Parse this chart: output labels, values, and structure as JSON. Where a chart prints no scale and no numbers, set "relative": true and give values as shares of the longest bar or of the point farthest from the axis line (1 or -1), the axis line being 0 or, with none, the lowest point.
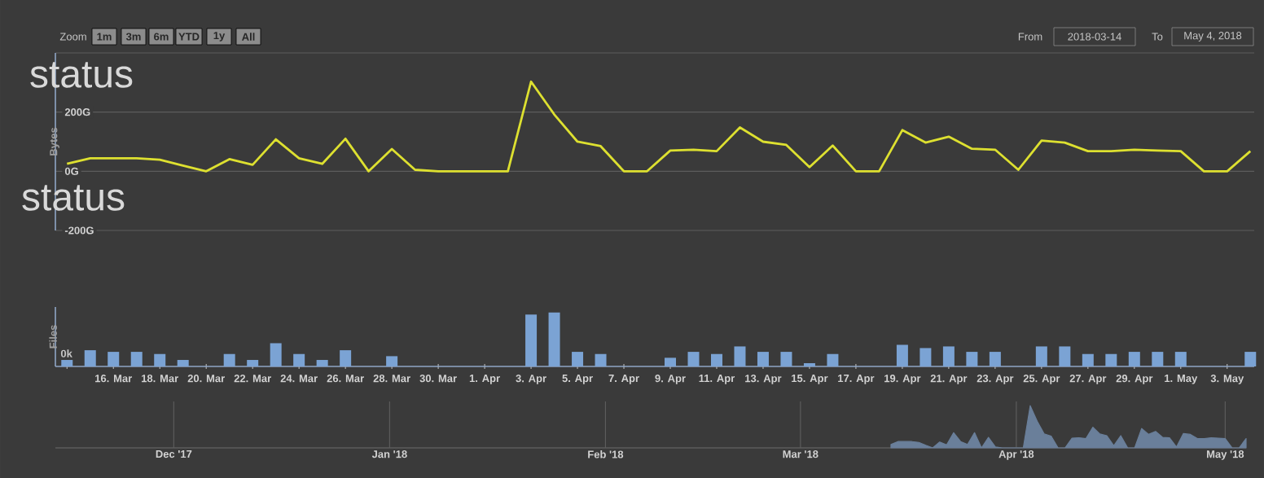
{
  "chart_data": [
    {
      "type": "line",
      "ylabel": "Bytes",
      "color": "#dde030",
      "x": [
        "2018-03-14",
        "2018-03-15",
        "2018-03-16",
        "2018-03-17",
        "2018-03-18",
        "2018-03-19",
        "2018-03-20",
        "2018-03-21",
        "2018-03-22",
        "2018-03-23",
        "2018-03-24",
        "2018-03-25",
        "2018-03-26",
        "2018-03-27",
        "2018-03-28",
        "2018-03-29",
        "2018-03-30",
        "2018-03-31",
        "2018-04-01",
        "2018-04-02",
        "2018-04-03",
        "2018-04-04",
        "2018-04-05",
        "2018-04-06",
        "2018-04-07",
        "2018-04-08",
        "2018-04-09",
        "2018-04-10",
        "2018-04-11",
        "2018-04-12",
        "2018-04-13",
        "2018-04-14",
        "2018-04-15",
        "2018-04-16",
        "2018-04-17",
        "2018-04-18",
        "2018-04-19",
        "2018-04-20",
        "2018-04-21",
        "2018-04-22",
        "2018-04-23",
        "2018-04-24",
        "2018-04-25",
        "2018-04-26",
        "2018-04-27",
        "2018-04-28",
        "2018-04-29",
        "2018-04-30",
        "2018-05-01",
        "2018-05-02",
        "2018-05-03",
        "2018-05-04"
      ],
      "values": [
        25,
        44,
        44,
        44,
        39,
        19,
        0,
        41,
        22,
        108,
        44,
        25,
        110,
        0,
        75,
        5,
        0,
        0,
        0,
        0,
        303,
        192,
        100,
        85,
        0,
        0,
        70,
        73,
        68,
        148,
        100,
        89,
        14,
        87,
        0,
        0,
        139,
        97,
        117,
        76,
        73,
        5,
        104,
        97,
        68,
        68,
        73,
        70,
        68,
        0,
        0,
        68
      ],
      "xlim": [
        "2018-03-13T12:00",
        "2018-05-04T04:00"
      ],
      "ylim": [
        -200,
        400
      ],
      "yticks": [
        {
          "value": -200,
          "label": "-200G"
        },
        {
          "value": 0,
          "label": "0G"
        },
        {
          "value": 200,
          "label": "200G"
        },
        {
          "value": 400,
          "label": null
        }
      ],
      "grid": "y",
      "tick_labels": "y",
      "annotations": [
        "Zoom",
        "1m",
        "3m",
        "6m",
        "YTD",
        "1y",
        "All",
        "From",
        "2018-03-14",
        "To",
        "May 4, 2018",
        "status",
        "status"
      ]
    },
    {
      "type": "bar",
      "ylabel": "Files",
      "color": "#7ba3d4",
      "relative": true,
      "x": [
        "2018-03-14",
        "2018-03-15",
        "2018-03-16",
        "2018-03-17",
        "2018-03-18",
        "2018-03-19",
        "2018-03-20",
        "2018-03-21",
        "2018-03-22",
        "2018-03-23",
        "2018-03-24",
        "2018-03-25",
        "2018-03-26",
        "2018-03-27",
        "2018-03-28",
        "2018-03-29",
        "2018-03-30",
        "2018-03-31",
        "2018-04-01",
        "2018-04-02",
        "2018-04-03",
        "2018-04-04",
        "2018-04-05",
        "2018-04-06",
        "2018-04-07",
        "2018-04-08",
        "2018-04-09",
        "2018-04-10",
        "2018-04-11",
        "2018-04-12",
        "2018-04-13",
        "2018-04-14",
        "2018-04-15",
        "2018-04-16",
        "2018-04-17",
        "2018-04-18",
        "2018-04-19",
        "2018-04-20",
        "2018-04-21",
        "2018-04-22",
        "2018-04-23",
        "2018-04-24",
        "2018-04-25",
        "2018-04-26",
        "2018-04-27",
        "2018-04-28",
        "2018-04-29",
        "2018-04-30",
        "2018-05-01",
        "2018-05-02",
        "2018-05-03",
        "2018-05-04"
      ],
      "values": [
        0.12,
        0.3,
        0.27,
        0.27,
        0.23,
        0.12,
        0,
        0.23,
        0.12,
        0.43,
        0.23,
        0.12,
        0.3,
        0,
        0.19,
        0,
        0,
        0,
        0,
        0,
        0.96,
        1,
        0.27,
        0.23,
        0,
        0,
        0.16,
        0.27,
        0.23,
        0.37,
        0.27,
        0.27,
        0.06,
        0.23,
        0,
        0,
        0.4,
        0.34,
        0.37,
        0.27,
        0.27,
        0,
        0.37,
        0.37,
        0.23,
        0.23,
        0.27,
        0.27,
        0.27,
        0,
        0,
        0.27
      ],
      "xlim": [
        "2018-03-13T12:00",
        "2018-05-04T04:00"
      ],
      "xticks": [
        {
          "value": "2018-03-14",
          "label": null
        },
        {
          "value": "2018-03-16",
          "label": "16. Mar"
        },
        {
          "value": "2018-03-18",
          "label": "18. Mar"
        },
        {
          "value": "2018-03-20",
          "label": "20. Mar"
        },
        {
          "value": "2018-03-22",
          "label": "22. Mar"
        },
        {
          "value": "2018-03-24",
          "label": "24. Mar"
        },
        {
          "value": "2018-03-26",
          "label": "26. Mar"
        },
        {
          "value": "2018-03-28",
          "label": "28. Mar"
        },
        {
          "value": "2018-03-30",
          "label": "30. Mar"
        },
        {
          "value": "2018-04-01",
          "label": "1. Apr"
        },
        {
          "value": "2018-04-03",
          "label": "3. Apr"
        },
        {
          "value": "2018-04-05",
          "label": "5. Apr"
        },
        {
          "value": "2018-04-07",
          "label": "7. Apr"
        },
        {
          "value": "2018-04-09",
          "label": "9. Apr"
        },
        {
          "value": "2018-04-11",
          "label": "11. Apr"
        },
        {
          "value": "2018-04-13",
          "label": "13. Apr"
        },
        {
          "value": "2018-04-15",
          "label": "15. Apr"
        },
        {
          "value": "2018-04-17",
          "label": "17. Apr"
        },
        {
          "value": "2018-04-19",
          "label": "19. Apr"
        },
        {
          "value": "2018-04-21",
          "label": "21. Apr"
        },
        {
          "value": "2018-04-23",
          "label": "23. Apr"
        },
        {
          "value": "2018-04-25",
          "label": "25. Apr"
        },
        {
          "value": "2018-04-27",
          "label": "27. Apr"
        },
        {
          "value": "2018-04-29",
          "label": "29. Apr"
        },
        {
          "value": "2018-05-01",
          "label": "1. May"
        },
        {
          "value": "2018-05-03",
          "label": "3. May"
        }
      ],
      "tick_labels": "x",
      "annotations": [
        "0k"
      ]
    },
    {
      "type": "area",
      "color": "#6a7f9a",
      "relative": true,
      "x": [
        "2018-03-14",
        "2018-03-15",
        "2018-03-16",
        "2018-03-17",
        "2018-03-18",
        "2018-03-19",
        "2018-03-20",
        "2018-03-21",
        "2018-03-22",
        "2018-03-23",
        "2018-03-24",
        "2018-03-25",
        "2018-03-26",
        "2018-03-27",
        "2018-03-28",
        "2018-03-29",
        "2018-03-30",
        "2018-03-31",
        "2018-04-01",
        "2018-04-02",
        "2018-04-03",
        "2018-04-04",
        "2018-04-05",
        "2018-04-06",
        "2018-04-07",
        "2018-04-08",
        "2018-04-09",
        "2018-04-10",
        "2018-04-11",
        "2018-04-12",
        "2018-04-13",
        "2018-04-14",
        "2018-04-15",
        "2018-04-16",
        "2018-04-17",
        "2018-04-18",
        "2018-04-19",
        "2018-04-20",
        "2018-04-21",
        "2018-04-22",
        "2018-04-23",
        "2018-04-24",
        "2018-04-25",
        "2018-04-26",
        "2018-04-27",
        "2018-04-28",
        "2018-04-29",
        "2018-04-30",
        "2018-05-01",
        "2018-05-02",
        "2018-05-03",
        "2018-05-04"
      ],
      "values": [
        0.08,
        0.15,
        0.15,
        0.15,
        0.13,
        0.06,
        0,
        0.14,
        0.07,
        0.36,
        0.15,
        0.08,
        0.36,
        0,
        0.25,
        0.02,
        0,
        0,
        0,
        0,
        1,
        0.63,
        0.33,
        0.28,
        0,
        0,
        0.23,
        0.24,
        0.22,
        0.49,
        0.33,
        0.29,
        0.05,
        0.29,
        0,
        0,
        0.46,
        0.32,
        0.39,
        0.25,
        0.24,
        0.02,
        0.34,
        0.32,
        0.22,
        0.22,
        0.24,
        0.23,
        0.22,
        0,
        0,
        0.22
      ],
      "xlim": [
        "2017-11-14",
        "2018-05-04"
      ],
      "xticks": [
        {
          "value": "2017-12-01",
          "label": "Dec '17"
        },
        {
          "value": "2018-01-01",
          "label": "Jan '18"
        },
        {
          "value": "2018-02-01",
          "label": "Feb '18"
        },
        {
          "value": "2018-03-01",
          "label": "Mar '18"
        },
        {
          "value": "2018-04-01",
          "label": "Apr '18"
        },
        {
          "value": "2018-05-01",
          "label": "May '18"
        }
      ],
      "grid": "x",
      "tick_labels": "x"
    }
  ]
}
